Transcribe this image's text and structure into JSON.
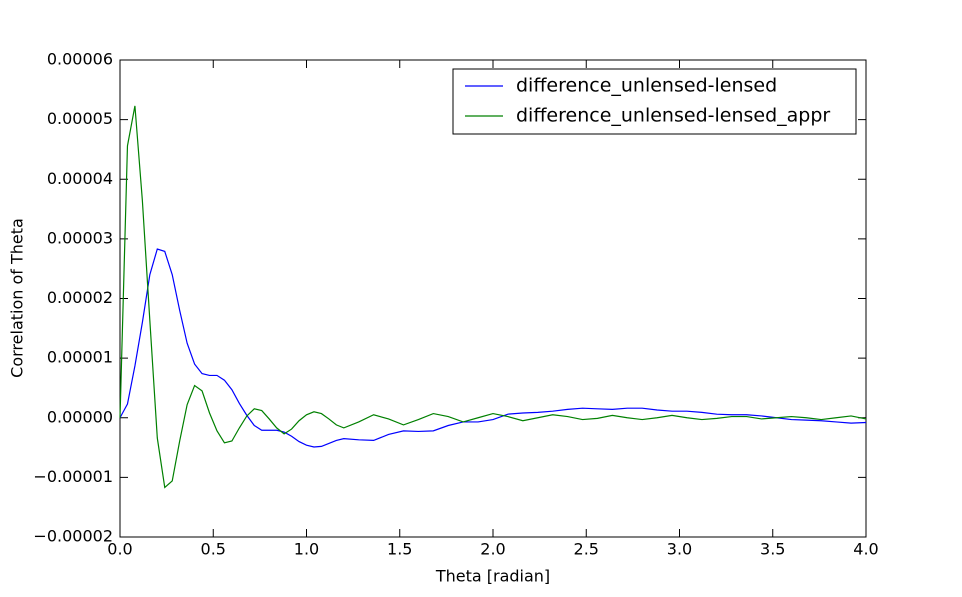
{
  "chart_data": {
    "type": "line",
    "xlabel": "Theta [radian]",
    "ylabel": "Correlation of Theta",
    "x": [
      0,
      0.04,
      0.08,
      0.12,
      0.16,
      0.2,
      0.24,
      0.28,
      0.32,
      0.36,
      0.4,
      0.44,
      0.48,
      0.52,
      0.56,
      0.6,
      0.64,
      0.68,
      0.72,
      0.76,
      0.8,
      0.84,
      0.88,
      0.92,
      0.96,
      1.0,
      1.04,
      1.08,
      1.12,
      1.16,
      1.2,
      1.28,
      1.36,
      1.44,
      1.52,
      1.6,
      1.68,
      1.76,
      1.84,
      1.92,
      2.0,
      2.08,
      2.16,
      2.24,
      2.32,
      2.4,
      2.48,
      2.56,
      2.64,
      2.72,
      2.8,
      2.88,
      2.96,
      3.04,
      3.12,
      3.2,
      3.28,
      3.36,
      3.44,
      3.52,
      3.6,
      3.68,
      3.76,
      3.84,
      3.92,
      4.0
    ],
    "series": [
      {
        "name": "difference_unlensed-lensed",
        "color": "#0000ff",
        "values": [
          0,
          2.3e-06,
          8.7e-06,
          1.6e-05,
          2.4e-05,
          2.83e-05,
          2.79e-05,
          2.4e-05,
          1.8e-05,
          1.25e-05,
          9e-06,
          7.4e-06,
          7.1e-06,
          7.1e-06,
          6.3e-06,
          4.7e-06,
          2.4e-06,
          4e-07,
          -1.3e-06,
          -2.1e-06,
          -2.1e-06,
          -2.1e-06,
          -2.4e-06,
          -3.1e-06,
          -4e-06,
          -4.6e-06,
          -4.9e-06,
          -4.8e-06,
          -4.3e-06,
          -3.8e-06,
          -3.5e-06,
          -3.7e-06,
          -3.8e-06,
          -2.8e-06,
          -2.2e-06,
          -2.3e-06,
          -2.2e-06,
          -1.3e-06,
          -7e-07,
          -7e-07,
          -3e-07,
          6e-07,
          8e-07,
          9e-07,
          1.1e-06,
          1.4e-06,
          1.6e-06,
          1.5e-06,
          1.4e-06,
          1.6e-06,
          1.6e-06,
          1.3e-06,
          1.1e-06,
          1.1e-06,
          9e-07,
          6e-07,
          5e-07,
          5e-07,
          3e-07,
          0,
          -3e-07,
          -4e-07,
          -5e-07,
          -7e-07,
          -9e-07,
          -8e-07
        ]
      },
      {
        "name": "difference_unlensed-lensed_appr",
        "color": "#008000",
        "values": [
          0,
          4.56e-05,
          5.23e-05,
          3.64e-05,
          1.63e-05,
          -3.4e-06,
          -1.17e-05,
          -1.06e-05,
          -3.9e-06,
          2.2e-06,
          5.4e-06,
          4.5e-06,
          8e-07,
          -2.2e-06,
          -4.2e-06,
          -3.9e-06,
          -1.7e-06,
          3e-07,
          1.5e-06,
          1.2e-06,
          -2e-07,
          -1.7e-06,
          -2.7e-06,
          -1.9e-06,
          -5e-07,
          5e-07,
          1e-06,
          7e-07,
          -2e-07,
          -1.2e-06,
          -1.7e-06,
          -7e-07,
          5e-07,
          -2e-07,
          -1.2e-06,
          -3e-07,
          7e-07,
          2e-07,
          -7e-07,
          0,
          7e-07,
          2e-07,
          -5e-07,
          0,
          5e-07,
          2e-07,
          -3e-07,
          -1e-07,
          4e-07,
          0,
          -3e-07,
          0,
          4e-07,
          0,
          -3e-07,
          -1e-07,
          2e-07,
          2e-07,
          -2e-07,
          0,
          2e-07,
          0,
          -3e-07,
          0,
          3e-07,
          -2e-07
        ]
      }
    ],
    "xlim": [
      0,
      4
    ],
    "ylim": [
      -2e-05,
      6e-05
    ],
    "xticks": [
      {
        "value": 0,
        "label": "0.0"
      },
      {
        "value": 0.5,
        "label": "0.5"
      },
      {
        "value": 1,
        "label": "1.0"
      },
      {
        "value": 1.5,
        "label": "1.5"
      },
      {
        "value": 2,
        "label": "2.0"
      },
      {
        "value": 2.5,
        "label": "2.5"
      },
      {
        "value": 3,
        "label": "3.0"
      },
      {
        "value": 3.5,
        "label": "3.5"
      },
      {
        "value": 4,
        "label": "4.0"
      }
    ],
    "yticks": [
      {
        "value": -2e-05,
        "label": "−0.00002"
      },
      {
        "value": -1e-05,
        "label": "−0.00001"
      },
      {
        "value": 0,
        "label": "0.00000"
      },
      {
        "value": 1e-05,
        "label": "0.00001"
      },
      {
        "value": 2e-05,
        "label": "0.00002"
      },
      {
        "value": 3e-05,
        "label": "0.00003"
      },
      {
        "value": 4e-05,
        "label": "0.00004"
      },
      {
        "value": 5e-05,
        "label": "0.00005"
      },
      {
        "value": 6e-05,
        "label": "0.00006"
      }
    ],
    "grid": false,
    "legend": "upper right"
  }
}
